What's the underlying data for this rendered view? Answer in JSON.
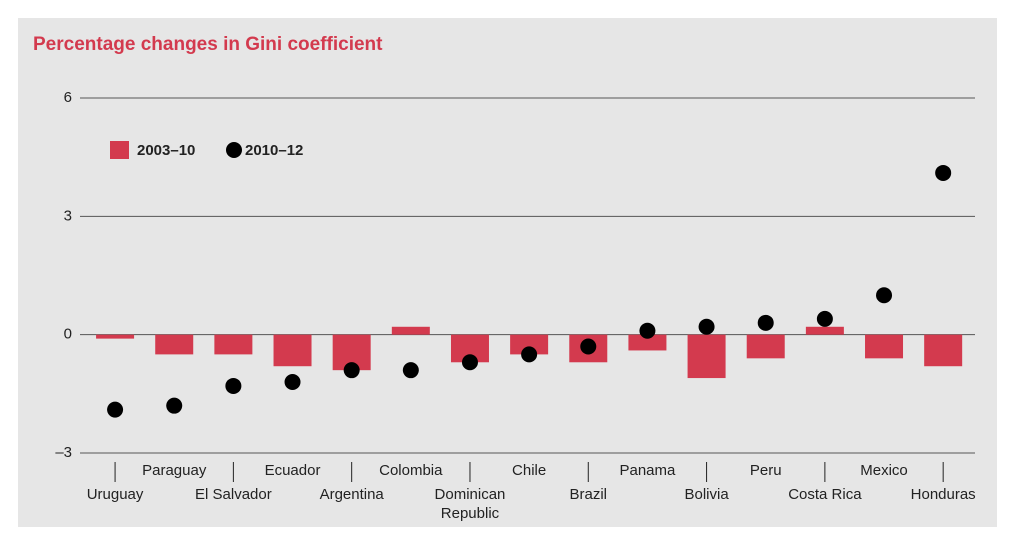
{
  "chart_data": {
    "type": "bar+scatter",
    "title": "Percentage changes in Gini coefficient",
    "categories": [
      "Uruguay",
      "Paraguay",
      "El Salvador",
      "Ecuador",
      "Argentina",
      "Colombia",
      "Dominican Republic",
      "Chile",
      "Brazil",
      "Panama",
      "Bolivia",
      "Peru",
      "Costa Rica",
      "Mexico",
      "Honduras"
    ],
    "series": [
      {
        "name": "2003–10",
        "type": "bar",
        "color": "#d33a4e",
        "values": [
          -0.1,
          -0.5,
          -0.5,
          -0.8,
          -0.9,
          0.2,
          -0.7,
          -0.5,
          -0.7,
          -0.4,
          -1.1,
          -0.6,
          0.2,
          -0.6,
          -0.8
        ]
      },
      {
        "name": "2010–12",
        "type": "scatter",
        "color": "#000000",
        "values": [
          -1.9,
          -1.8,
          -1.3,
          -1.2,
          -0.9,
          -0.9,
          -0.7,
          -0.5,
          -0.3,
          0.1,
          0.2,
          0.3,
          0.4,
          1.0,
          4.1
        ]
      }
    ],
    "ylim": [
      -3,
      6
    ],
    "yticks": [
      {
        "value": -3,
        "label": "–3"
      },
      0,
      3,
      6
    ],
    "grid": true,
    "legend": "top-left"
  }
}
